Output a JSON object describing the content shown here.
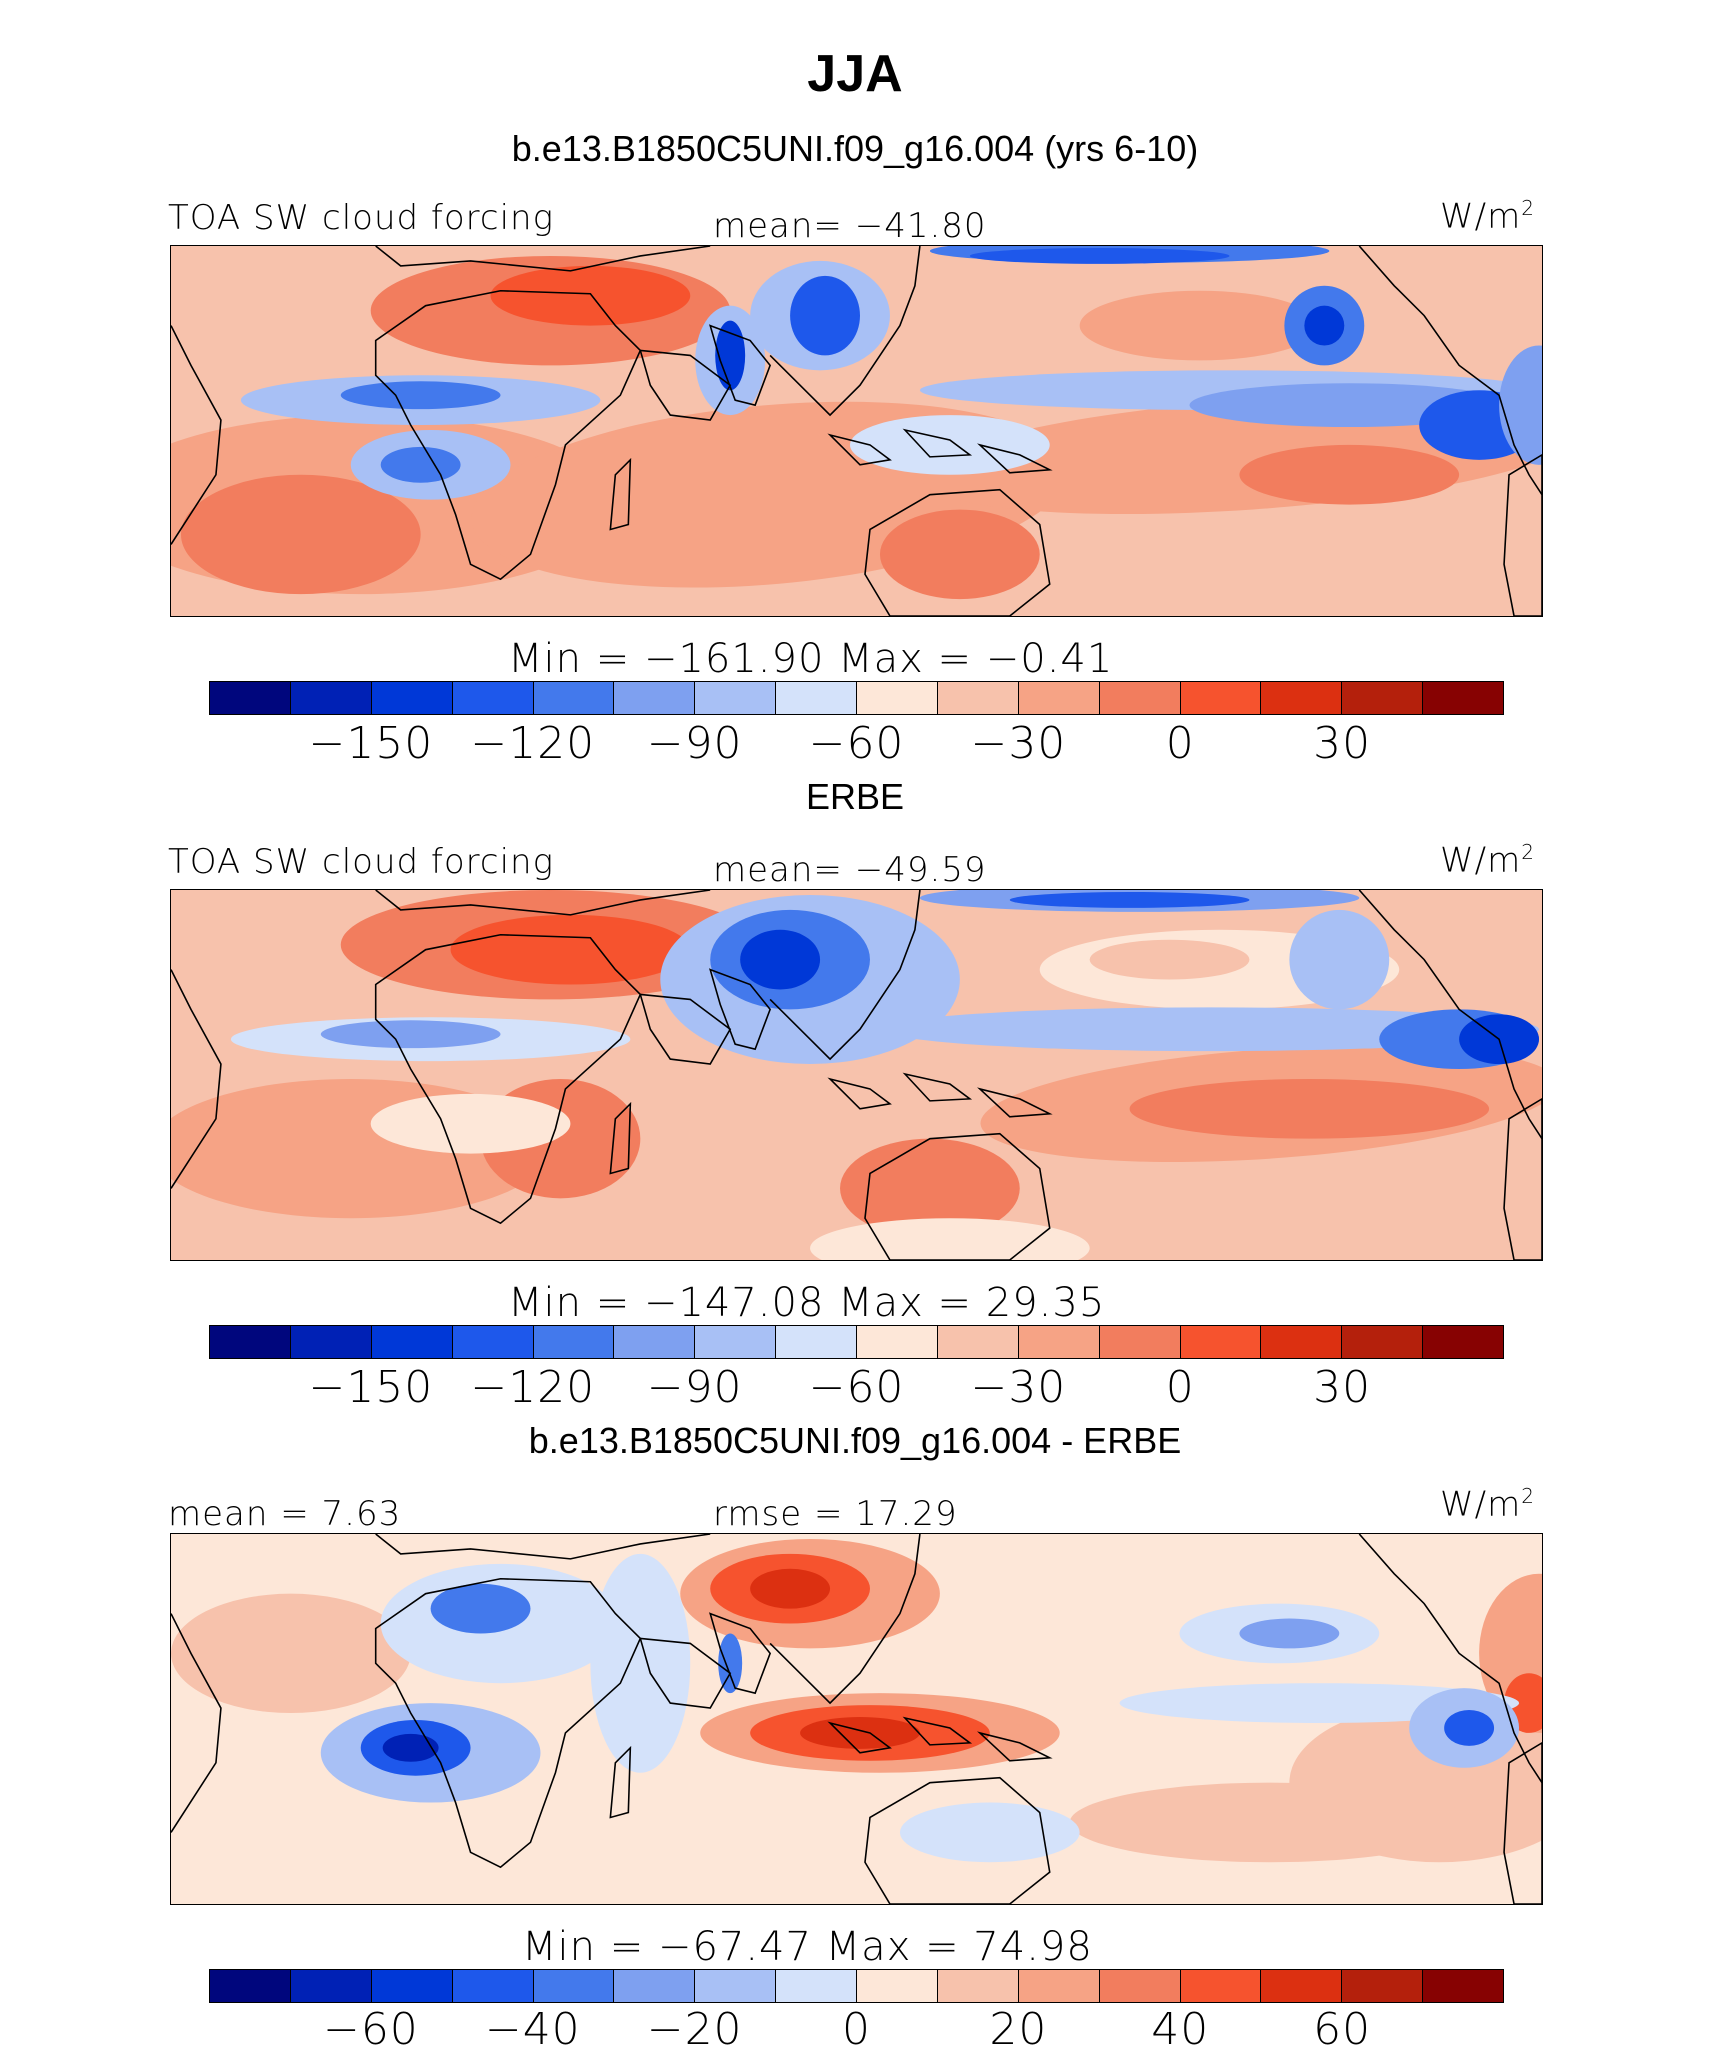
{
  "title": "JJA",
  "colors": [
    "#00067d",
    "#0021b5",
    "#0038d7",
    "#1e58eb",
    "#4379ec",
    "#7ea0f0",
    "#a8c0f5",
    "#d4e2fa",
    "#fde7d8",
    "#f7c2ac",
    "#f6a385",
    "#f27d5e",
    "#f6532e",
    "#dc3011",
    "#b4200c",
    "#870202"
  ],
  "panels": [
    {
      "header": "b.e13.B1850C5UNI.f09_g16.004 (yrs 6-10)",
      "left_label": "TOA SW cloud forcing",
      "mid_label": "mean= −41.80",
      "units": "W/m",
      "units_sup": "2",
      "minmax": "Min  =  −161.90  Max  =    −0.41",
      "ticks": [
        "−150",
        "−120",
        "−90",
        "−60",
        "−30",
        "0",
        "30"
      ],
      "field": "model"
    },
    {
      "header": "ERBE",
      "left_label": "TOA SW cloud forcing",
      "mid_label": "mean= −49.59",
      "units": "W/m",
      "units_sup": "2",
      "minmax": "Min  =  −147.08  Max  =    29.35",
      "ticks": [
        "−150",
        "−120",
        "−90",
        "−60",
        "−30",
        "0",
        "30"
      ],
      "field": "obs"
    },
    {
      "header": "b.e13.B1850C5UNI.f09_g16.004 - ERBE",
      "left_label": "mean =    7.63",
      "mid_label": "rmse  =   17.29",
      "units": "W/m",
      "units_sup": "2",
      "minmax": "Min  =  −67.47  Max  =    74.98",
      "ticks": [
        "−60",
        "−40",
        "−20",
        "0",
        "20",
        "40",
        "60"
      ],
      "field": "diff"
    }
  ]
}
